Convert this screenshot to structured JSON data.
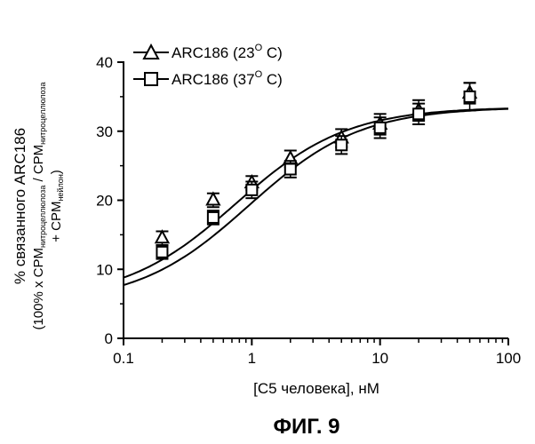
{
  "chart_data": {
    "type": "scatter",
    "x_scale": "log",
    "xlim": [
      0.1,
      100
    ],
    "ylim": [
      0,
      40
    ],
    "x_ticks": [
      {
        "value": 0.1,
        "label": "0.1"
      },
      {
        "value": 1,
        "label": "1"
      },
      {
        "value": 10,
        "label": "10"
      },
      {
        "value": 100,
        "label": "100"
      }
    ],
    "y_ticks": [
      {
        "value": 0,
        "label": "0"
      },
      {
        "value": 10,
        "label": "10"
      },
      {
        "value": 20,
        "label": "20"
      },
      {
        "value": 30,
        "label": "30"
      },
      {
        "value": 40,
        "label": "40"
      }
    ],
    "xlabel": "[C5 человека], нМ",
    "ylabel_line1": "% связанного ARC186",
    "ylabel_line2_prefix": "(100% x CPM",
    "ylabel_line2_sub": "нитроцеллюлоза",
    "ylabel_line2_mid": " / CPM",
    "ylabel_line2_sub2": "нитроцеллюлоза",
    "ylabel_line3_prefix": "+ CPM",
    "ylabel_line3_sub": "нейлон",
    "ylabel_line3_suffix": ")",
    "legend_placement": "top-left",
    "grid": false,
    "series": [
      {
        "name": "ARC186 (23° C)",
        "legend_label": "ARC186 (23",
        "legend_degree": "O",
        "legend_suffix": " C)",
        "marker": "triangle",
        "x": [
          0.2,
          0.5,
          1,
          2,
          5,
          10,
          20,
          50
        ],
        "y": [
          14.5,
          20,
          22.5,
          26,
          29,
          31,
          33,
          35.5
        ],
        "err": [
          1.0,
          1.0,
          1.0,
          1.2,
          1.3,
          1.5,
          1.5,
          1.5
        ],
        "fit": {
          "bottom": 5.5,
          "top": 33.5,
          "ec50": 0.75
        }
      },
      {
        "name": "ARC186 (37° C)",
        "legend_label": "ARC186 (37",
        "legend_degree": "O",
        "legend_suffix": " C)",
        "marker": "square",
        "x": [
          0.2,
          0.5,
          1,
          2,
          5,
          10,
          20,
          50
        ],
        "y": [
          12.5,
          17.5,
          21.5,
          24.5,
          28,
          30.5,
          32.5,
          35
        ],
        "err": [
          1.0,
          1.0,
          1.2,
          1.2,
          1.3,
          1.5,
          1.5,
          2.0
        ],
        "fit": {
          "bottom": 5.0,
          "top": 33.5,
          "ec50": 0.95
        }
      }
    ]
  },
  "caption": "ФИГ. 9"
}
